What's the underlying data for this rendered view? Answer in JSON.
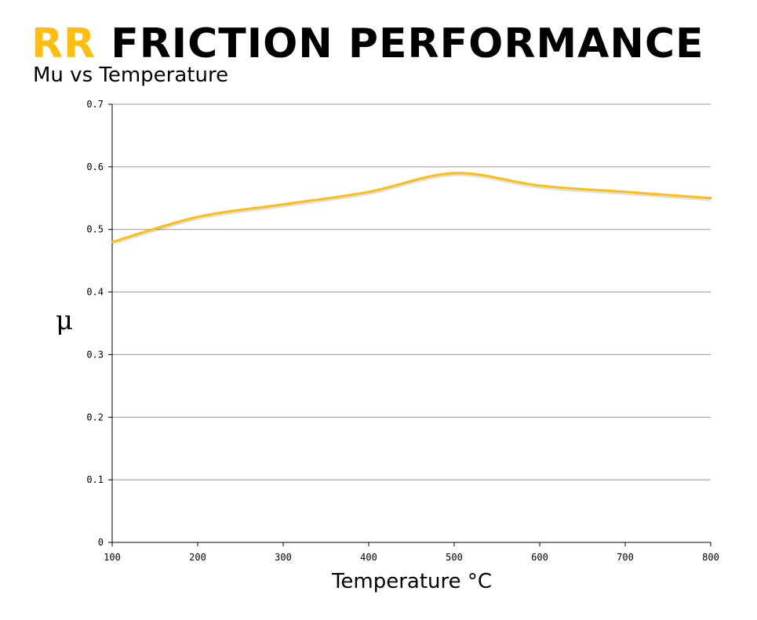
{
  "header": {
    "title_brand": "RR",
    "title_rest": "FRICTION PERFORMANCE",
    "subtitle": "Mu vs Temperature"
  },
  "colors": {
    "line": "#FDBE0F",
    "grid": "#9a9a9a",
    "axis": "#000000"
  },
  "chart_data": {
    "type": "line",
    "title": "RR FRICTION PERFORMANCE",
    "subtitle": "Mu vs Temperature",
    "xlabel": "Temperature °C",
    "ylabel": "μ",
    "x": [
      100,
      200,
      300,
      400,
      500,
      600,
      700,
      800
    ],
    "series": [
      {
        "values": [
          0.48,
          0.52,
          0.54,
          0.56,
          0.59,
          0.57,
          0.56,
          0.55
        ]
      }
    ],
    "xlim": [
      100,
      800
    ],
    "ylim": [
      0,
      0.7
    ],
    "xticks": [
      "100",
      "200",
      "300",
      "400",
      "500",
      "600",
      "700",
      "800"
    ],
    "yticks": [
      "0",
      "0.1",
      "0.2",
      "0.3",
      "0.4",
      "0.5",
      "0.6",
      "0.7"
    ],
    "grid": true,
    "smooth": true
  }
}
